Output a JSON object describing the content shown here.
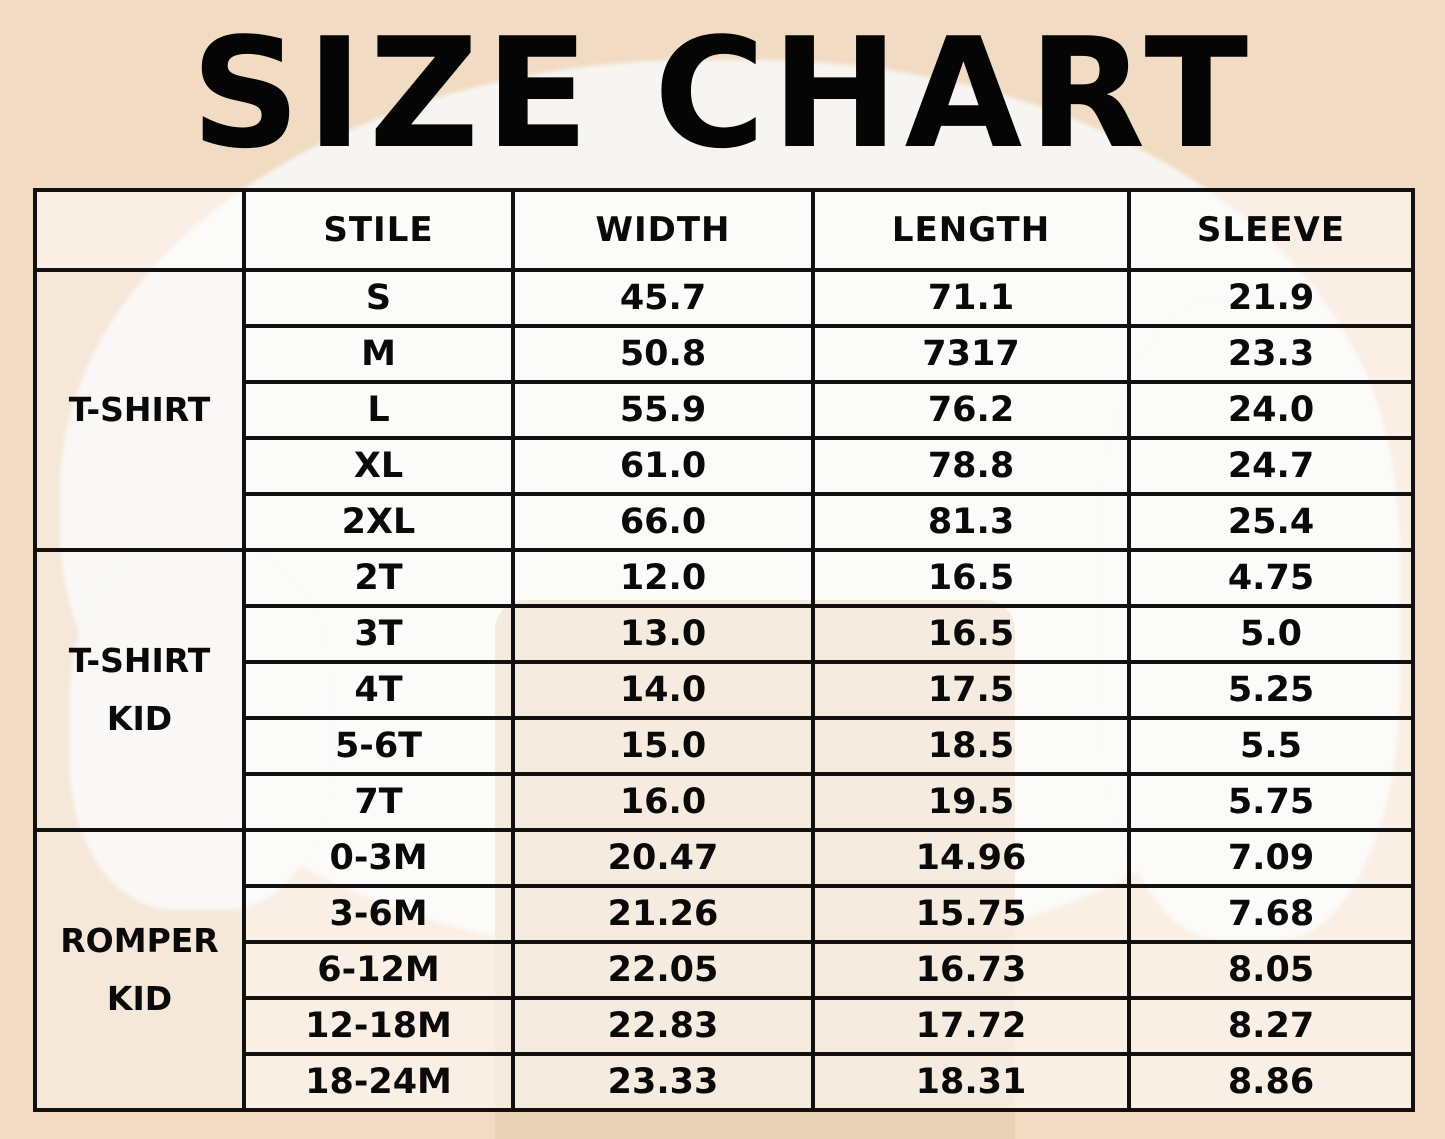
{
  "title": "SIZE CHART",
  "chart_data": {
    "type": "table",
    "title": "SIZE CHART",
    "columns": [
      "",
      "STILE",
      "WIDTH",
      "LENGTH",
      "SLEEVE"
    ],
    "groups": [
      {
        "name": "T-SHIRT",
        "rows": [
          [
            "S",
            "45.7",
            "71.1",
            "21.9"
          ],
          [
            "M",
            "50.8",
            "7317",
            "23.3"
          ],
          [
            "L",
            "55.9",
            "76.2",
            "24.0"
          ],
          [
            "XL",
            "61.0",
            "78.8",
            "24.7"
          ],
          [
            "2XL",
            "66.0",
            "81.3",
            "25.4"
          ]
        ]
      },
      {
        "name": "T-SHIRT\nKID",
        "rows": [
          [
            "2T",
            "12.0",
            "16.5",
            "4.75"
          ],
          [
            "3T",
            "13.0",
            "16.5",
            "5.0"
          ],
          [
            "4T",
            "14.0",
            "17.5",
            "5.25"
          ],
          [
            "5-6T",
            "15.0",
            "18.5",
            "5.5"
          ],
          [
            "7T",
            "16.0",
            "19.5",
            "5.75"
          ]
        ]
      },
      {
        "name": "ROMPER\nKID",
        "rows": [
          [
            "0-3M",
            "20.47",
            "14.96",
            "7.09"
          ],
          [
            "3-6M",
            "21.26",
            "15.75",
            "7.68"
          ],
          [
            "6-12M",
            "22.05",
            "16.73",
            "8.05"
          ],
          [
            "12-18M",
            "22.83",
            "17.72",
            "8.27"
          ],
          [
            "18-24M",
            "23.33",
            "18.31",
            "8.86"
          ]
        ]
      }
    ]
  },
  "colors": {
    "background": "#f1dcc3",
    "text": "#050505",
    "grid": "#111111"
  }
}
